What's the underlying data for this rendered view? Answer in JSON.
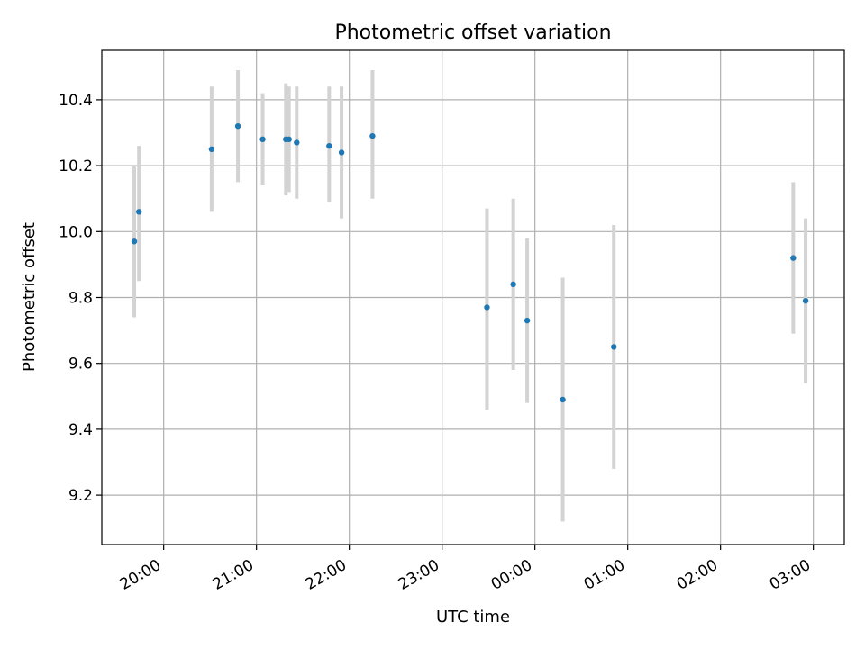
{
  "chart_data": {
    "type": "scatter",
    "title": "Photometric offset variation",
    "xlabel": "UTC time",
    "ylabel": "Photometric offset",
    "x_axis_kind": "time",
    "xlim": [
      "19:20",
      "03:20 (+1 day)"
    ],
    "ylim": [
      9.05,
      10.55
    ],
    "grid": true,
    "xticks": [
      "20:00",
      "21:00",
      "22:00",
      "23:00",
      "00:00",
      "01:00",
      "02:00",
      "03:00"
    ],
    "yticks": [
      "9.2",
      "9.4",
      "9.6",
      "9.8",
      "10.0",
      "10.2",
      "10.4"
    ],
    "marker_color": "#1f77b4",
    "errorbar_color": "#d3d3d3",
    "points": [
      {
        "time": "19:41",
        "y": 9.97,
        "ylow": 9.74,
        "yhigh": 10.2
      },
      {
        "time": "19:44",
        "y": 10.06,
        "ylow": 9.85,
        "yhigh": 10.26
      },
      {
        "time": "20:31",
        "y": 10.25,
        "ylow": 10.06,
        "yhigh": 10.44
      },
      {
        "time": "20:48",
        "y": 10.32,
        "ylow": 10.15,
        "yhigh": 10.49
      },
      {
        "time": "21:04",
        "y": 10.28,
        "ylow": 10.14,
        "yhigh": 10.42
      },
      {
        "time": "21:19",
        "y": 10.28,
        "ylow": 10.11,
        "yhigh": 10.45
      },
      {
        "time": "21:21",
        "y": 10.28,
        "ylow": 10.12,
        "yhigh": 10.44
      },
      {
        "time": "21:26",
        "y": 10.27,
        "ylow": 10.1,
        "yhigh": 10.44
      },
      {
        "time": "21:47",
        "y": 10.26,
        "ylow": 10.09,
        "yhigh": 10.44
      },
      {
        "time": "21:55",
        "y": 10.24,
        "ylow": 10.04,
        "yhigh": 10.44
      },
      {
        "time": "22:15",
        "y": 10.29,
        "ylow": 10.1,
        "yhigh": 10.49
      },
      {
        "time": "23:29",
        "y": 9.77,
        "ylow": 9.46,
        "yhigh": 10.07
      },
      {
        "time": "23:46",
        "y": 9.84,
        "ylow": 9.58,
        "yhigh": 10.1
      },
      {
        "time": "23:55",
        "y": 9.73,
        "ylow": 9.48,
        "yhigh": 9.98
      },
      {
        "time": "00:18",
        "y": 9.49,
        "ylow": 9.12,
        "yhigh": 9.86
      },
      {
        "time": "00:51",
        "y": 9.65,
        "ylow": 9.28,
        "yhigh": 10.02
      },
      {
        "time": "02:47",
        "y": 9.92,
        "ylow": 9.69,
        "yhigh": 10.15
      },
      {
        "time": "02:55",
        "y": 9.79,
        "ylow": 9.54,
        "yhigh": 10.04
      }
    ]
  }
}
